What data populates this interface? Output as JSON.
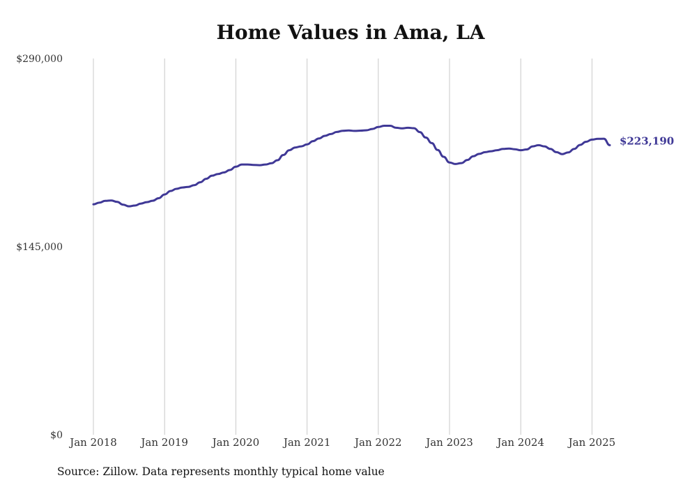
{
  "chart_data": {
    "type": "line",
    "title": "Home Values in Ama, LA",
    "xlabel": "",
    "ylabel": "",
    "ylim": [
      0,
      290000
    ],
    "y_ticks": [
      "$0",
      "$145,000",
      "$290,000"
    ],
    "x_ticks": [
      "Jan 2018",
      "Jan 2019",
      "Jan 2020",
      "Jan 2021",
      "Jan 2022",
      "Jan 2023",
      "Jan 2024",
      "Jan 2025"
    ],
    "grid": "vertical",
    "legend": "none",
    "line_color": "#3f3896",
    "end_label": "$223,190",
    "series": [
      {
        "x": [
          "2018-01",
          "2018-02",
          "2018-03",
          "2018-04",
          "2018-05",
          "2018-06",
          "2018-07",
          "2018-08",
          "2018-09",
          "2018-10",
          "2018-11",
          "2018-12",
          "2019-01",
          "2019-02",
          "2019-03",
          "2019-04",
          "2019-05",
          "2019-06",
          "2019-07",
          "2019-08",
          "2019-09",
          "2019-10",
          "2019-11",
          "2019-12",
          "2020-01",
          "2020-02",
          "2020-03",
          "2020-04",
          "2020-05",
          "2020-06",
          "2020-07",
          "2020-08",
          "2020-09",
          "2020-10",
          "2020-11",
          "2020-12",
          "2021-01",
          "2021-02",
          "2021-03",
          "2021-04",
          "2021-05",
          "2021-06",
          "2021-07",
          "2021-08",
          "2021-09",
          "2021-10",
          "2021-11",
          "2021-12",
          "2022-01",
          "2022-02",
          "2022-03",
          "2022-04",
          "2022-05",
          "2022-06",
          "2022-07",
          "2022-08",
          "2022-09",
          "2022-10",
          "2022-11",
          "2022-12",
          "2023-01",
          "2023-02",
          "2023-03",
          "2023-04",
          "2023-05",
          "2023-06",
          "2023-07",
          "2023-08",
          "2023-09",
          "2023-10",
          "2023-11",
          "2023-12",
          "2024-01",
          "2024-02",
          "2024-03",
          "2024-04",
          "2024-05",
          "2024-06",
          "2024-07",
          "2024-08",
          "2024-09",
          "2024-10",
          "2024-11",
          "2024-12",
          "2025-01",
          "2025-02",
          "2025-03",
          "2025-04"
        ],
        "values": [
          177600,
          178900,
          180300,
          180600,
          179500,
          177400,
          176100,
          176700,
          178200,
          179300,
          180400,
          182300,
          185200,
          187900,
          189600,
          190600,
          191100,
          192400,
          194600,
          197300,
          199700,
          201000,
          202200,
          204100,
          206600,
          208300,
          208300,
          208000,
          207800,
          208300,
          209300,
          211600,
          215600,
          219300,
          221400,
          222300,
          223800,
          226300,
          228400,
          230400,
          231800,
          233400,
          234300,
          234600,
          234200,
          234400,
          234700,
          235700,
          237200,
          238200,
          238200,
          236600,
          236200,
          236600,
          236300,
          233300,
          229100,
          224800,
          219500,
          214300,
          209900,
          208700,
          209400,
          211800,
          214700,
          216500,
          217800,
          218500,
          219300,
          220300,
          220600,
          220100,
          219300,
          219900,
          222300,
          223200,
          222300,
          220300,
          217800,
          216300,
          217600,
          220300,
          223400,
          225800,
          227500,
          228100,
          228200,
          223190
        ]
      }
    ]
  },
  "footer": {
    "source": "Source: Zillow. Data represents monthly typical home value"
  }
}
